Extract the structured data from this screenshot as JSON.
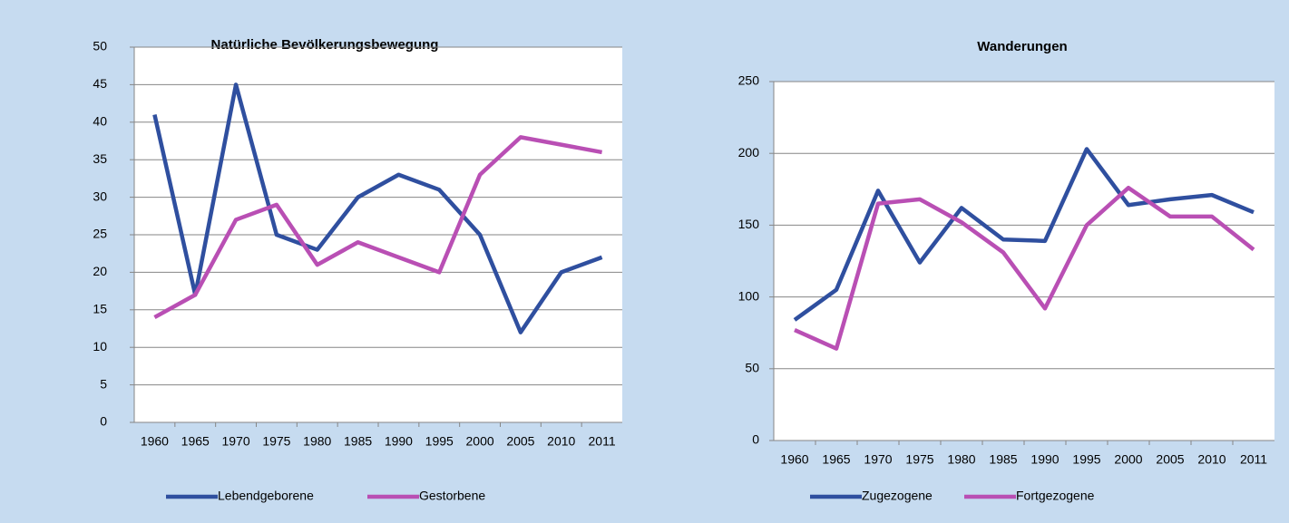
{
  "chart_data": [
    {
      "type": "line",
      "title": "Natürliche Bevölkerungsbewegung",
      "categories": [
        "1960",
        "1965",
        "1970",
        "1975",
        "1980",
        "1985",
        "1990",
        "1995",
        "2000",
        "2005",
        "2010",
        "2011"
      ],
      "series": [
        {
          "name": "Lebendgeborene",
          "color": "#2f4f9f",
          "values": [
            41,
            17,
            45,
            25,
            23,
            30,
            33,
            31,
            25,
            12,
            20,
            22
          ]
        },
        {
          "name": "Gestorbene",
          "color": "#b94fb4",
          "values": [
            14,
            17,
            27,
            29,
            21,
            24,
            22,
            20,
            33,
            38,
            37,
            36
          ]
        }
      ],
      "ylim": [
        0,
        50
      ],
      "yticks": [
        0,
        5,
        10,
        15,
        20,
        25,
        30,
        35,
        40,
        45,
        50
      ],
      "grid": true,
      "legend": "bottom"
    },
    {
      "type": "line",
      "title": "Wanderungen",
      "categories": [
        "1960",
        "1965",
        "1970",
        "1975",
        "1980",
        "1985",
        "1990",
        "1995",
        "2000",
        "2005",
        "2010",
        "2011"
      ],
      "series": [
        {
          "name": "Zugezogene",
          "color": "#2f4f9f",
          "values": [
            84,
            105,
            174,
            124,
            162,
            140,
            139,
            203,
            164,
            168,
            171,
            159
          ]
        },
        {
          "name": "Fortgezogene",
          "color": "#b94fb4",
          "values": [
            77,
            64,
            165,
            168,
            152,
            131,
            92,
            150,
            176,
            156,
            156,
            133
          ]
        }
      ],
      "ylim": [
        0,
        250
      ],
      "yticks": [
        0,
        50,
        100,
        150,
        200,
        250
      ],
      "grid": true,
      "legend": "bottom"
    }
  ]
}
